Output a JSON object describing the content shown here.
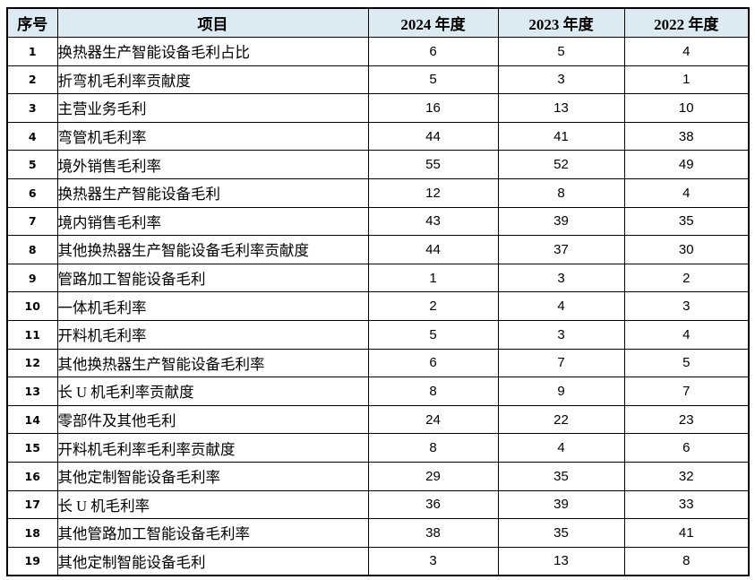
{
  "colors": {
    "header_bg": "#dceaf2",
    "border": "#000000",
    "text": "#000000",
    "row_bg": "#ffffff"
  },
  "table": {
    "columns": [
      {
        "key": "no",
        "label": "序号"
      },
      {
        "key": "item",
        "label": "项目"
      },
      {
        "key": "v2024",
        "label": "2024 年度"
      },
      {
        "key": "v2023",
        "label": "2023 年度"
      },
      {
        "key": "v2022",
        "label": "2022 年度"
      }
    ],
    "rows": [
      {
        "no": "1",
        "item": "换热器生产智能设备毛利占比",
        "v2024": "6",
        "v2023": "5",
        "v2022": "4"
      },
      {
        "no": "2",
        "item": "折弯机毛利率贡献度",
        "v2024": "5",
        "v2023": "3",
        "v2022": "1"
      },
      {
        "no": "3",
        "item": "主营业务毛利",
        "v2024": "16",
        "v2023": "13",
        "v2022": "10"
      },
      {
        "no": "4",
        "item": "弯管机毛利率",
        "v2024": "44",
        "v2023": "41",
        "v2022": "38"
      },
      {
        "no": "5",
        "item": "境外销售毛利率",
        "v2024": "55",
        "v2023": "52",
        "v2022": "49"
      },
      {
        "no": "6",
        "item": "换热器生产智能设备毛利",
        "v2024": "12",
        "v2023": "8",
        "v2022": "4"
      },
      {
        "no": "7",
        "item": "境内销售毛利率",
        "v2024": "43",
        "v2023": "39",
        "v2022": "35"
      },
      {
        "no": "8",
        "item": "其他换热器生产智能设备毛利率贡献度",
        "v2024": "44",
        "v2023": "37",
        "v2022": "30"
      },
      {
        "no": "9",
        "item": "管路加工智能设备毛利",
        "v2024": "1",
        "v2023": "3",
        "v2022": "2"
      },
      {
        "no": "10",
        "item": "一体机毛利率",
        "v2024": "2",
        "v2023": "4",
        "v2022": "3"
      },
      {
        "no": "11",
        "item": "开料机毛利率",
        "v2024": "5",
        "v2023": "3",
        "v2022": "4"
      },
      {
        "no": "12",
        "item": "其他换热器生产智能设备毛利率",
        "v2024": "6",
        "v2023": "7",
        "v2022": "5"
      },
      {
        "no": "13",
        "item": "长 U 机毛利率贡献度",
        "v2024": "8",
        "v2023": "9",
        "v2022": "7"
      },
      {
        "no": "14",
        "item": "零部件及其他毛利",
        "v2024": "24",
        "v2023": "22",
        "v2022": "23"
      },
      {
        "no": "15",
        "item": "开料机毛利率毛利率贡献度",
        "v2024": "8",
        "v2023": "4",
        "v2022": "6"
      },
      {
        "no": "16",
        "item": "其他定制智能设备毛利率",
        "v2024": "29",
        "v2023": "35",
        "v2022": "32"
      },
      {
        "no": "17",
        "item": "长 U 机毛利率",
        "v2024": "36",
        "v2023": "39",
        "v2022": "33"
      },
      {
        "no": "18",
        "item": "其他管路加工智能设备毛利率",
        "v2024": "38",
        "v2023": "35",
        "v2022": "41"
      },
      {
        "no": "19",
        "item": "其他定制智能设备毛利",
        "v2024": "3",
        "v2023": "13",
        "v2022": "8"
      }
    ]
  }
}
